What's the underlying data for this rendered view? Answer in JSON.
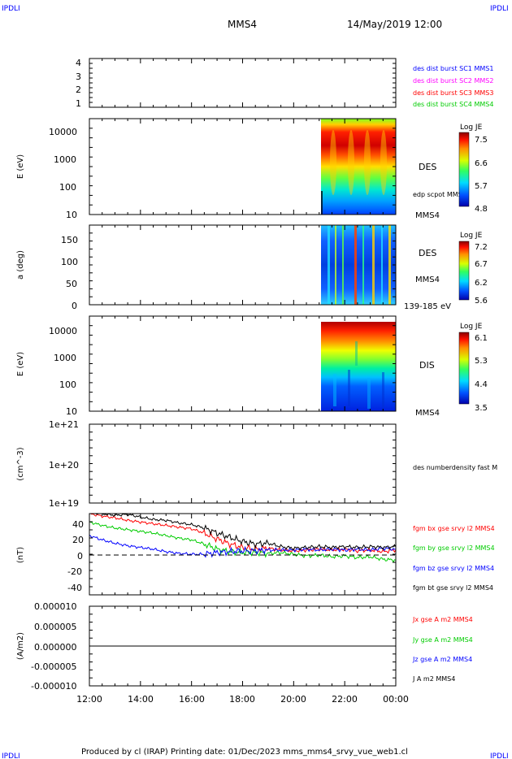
{
  "header": {
    "ipdli": "IPDLI",
    "spacecraft": "MMS4",
    "datetime": "14/May/2019 12:00"
  },
  "footer": {
    "text": "Produced by cl (IRAP)   Printing date: 01/Dec/2023   mms_mms4_srvy_vue_web1.cl"
  },
  "colors": {
    "blue": "#0000ff",
    "magenta": "#ff00ff",
    "red": "#ff0000",
    "green": "#00cc00",
    "black": "#000000"
  },
  "chart_data": [
    {
      "type": "line",
      "panel": "burst",
      "ylim": [
        0.7,
        4.3
      ],
      "yticks": [
        "4",
        "3",
        "2",
        "1"
      ],
      "legend": [
        "des dist burst SC1 MMS1",
        "des dist burst SC2 MMS2",
        "des dist burst SC3 MMS3",
        "des dist burst SC4 MMS4"
      ],
      "legend_colors": [
        "#0000ff",
        "#ff00ff",
        "#ff0000",
        "#00cc00"
      ]
    },
    {
      "type": "heatmap",
      "panel": "des-energy",
      "ylabel": "E (eV)",
      "yscale": "log",
      "yticks": [
        "10000",
        "1000",
        "100",
        "10"
      ],
      "side_label": "DES",
      "side_label2": "MMS4",
      "extra_label": "edp scpot MMS4",
      "colorbar": {
        "title": "Log JE",
        "ticks": [
          "7.5",
          "6.6",
          "5.7",
          "4.8"
        ]
      },
      "data_start": "21:00",
      "data_end": "00:00"
    },
    {
      "type": "heatmap",
      "panel": "des-pitch",
      "ylabel": "a (deg)",
      "yticks": [
        "150",
        "100",
        "50",
        "0"
      ],
      "ylim": [
        0,
        180
      ],
      "side_label": "DES",
      "side_label2": "MMS4",
      "side_label3": "139-185 eV",
      "colorbar": {
        "title": "Log JE",
        "ticks": [
          "7.2",
          "6.7",
          "6.2",
          "5.6"
        ]
      },
      "data_start": "21:00",
      "data_end": "00:00"
    },
    {
      "type": "heatmap",
      "panel": "dis-energy",
      "ylabel": "E (eV)",
      "yscale": "log",
      "yticks": [
        "10000",
        "1000",
        "100",
        "10"
      ],
      "side_label": "DIS",
      "side_label2": "MMS4",
      "colorbar": {
        "title": "Log JE",
        "ticks": [
          "6.1",
          "5.3",
          "4.4",
          "3.5"
        ]
      },
      "data_start": "21:00",
      "data_end": "00:00"
    },
    {
      "type": "line",
      "panel": "density",
      "ylabel": "(cm^-3)",
      "yscale": "log",
      "yticks": [
        "1e+21",
        "1e+20",
        "1e+19"
      ],
      "legend": [
        "des numberdensity fast M"
      ],
      "legend_colors": [
        "#000000"
      ]
    },
    {
      "type": "line",
      "panel": "bfield",
      "ylabel": "(nT)",
      "ylim": [
        -48,
        48
      ],
      "yticks": [
        "40",
        "20",
        "0",
        "-20",
        "-40"
      ],
      "x": [
        12,
        12.5,
        13,
        13.5,
        14,
        14.5,
        15,
        15.5,
        16,
        16.5,
        17,
        17.5,
        18,
        18.5,
        19,
        19.5,
        20,
        20.5,
        21,
        21.5,
        22,
        22.5,
        23,
        23.5,
        24
      ],
      "series": [
        {
          "name": "fgm bx gse srvy l2 MMS4",
          "color": "#ff0000",
          "values": [
            48,
            45,
            43,
            40,
            38,
            36,
            34,
            32,
            30,
            25,
            18,
            12,
            8,
            6,
            7,
            5,
            4,
            5,
            6,
            5,
            6,
            4,
            5,
            3,
            5
          ]
        },
        {
          "name": "fgm by gse srvy l2 MMS4",
          "color": "#00cc00",
          "values": [
            38,
            34,
            31,
            29,
            27,
            25,
            22,
            19,
            17,
            12,
            6,
            3,
            2,
            2,
            1,
            2,
            0,
            -2,
            -1,
            -3,
            -2,
            -4,
            -3,
            -6,
            -7
          ]
        },
        {
          "name": "fgm bz gse srvy l2 MMS4",
          "color": "#0000ff",
          "values": [
            22,
            17,
            13,
            10,
            8,
            6,
            3,
            1,
            0,
            0,
            2,
            3,
            4,
            4,
            5,
            5,
            5,
            6,
            5,
            6,
            5,
            6,
            5,
            7,
            6
          ]
        },
        {
          "name": "fgm bt gse srvy l2 MMS4",
          "color": "#000000",
          "values": [
            50,
            48,
            46,
            47,
            44,
            41,
            40,
            37,
            35,
            31,
            25,
            20,
            15,
            12,
            13,
            9,
            7,
            8,
            9,
            8,
            9,
            8,
            9,
            8,
            9
          ]
        }
      ]
    },
    {
      "type": "line",
      "panel": "current",
      "ylabel": "(A/m2)",
      "ylim": [
        -1e-05,
        1e-05
      ],
      "yticks": [
        "0.000010",
        "0.000005",
        "0.000000",
        "-0.000005",
        "-0.000010"
      ],
      "x": [
        12,
        14,
        16,
        18,
        20,
        22,
        24
      ],
      "series": [
        {
          "name": "Jx gse A m2 MMS4",
          "color": "#ff0000",
          "values": [
            0,
            0,
            0,
            0,
            0,
            0,
            0
          ]
        },
        {
          "name": "Jy gse A m2 MMS4",
          "color": "#00cc00",
          "values": [
            0,
            0,
            0,
            0,
            0,
            0,
            0
          ]
        },
        {
          "name": "Jz gse A m2 MMS4",
          "color": "#0000ff",
          "values": [
            0,
            0,
            0,
            0,
            0,
            0,
            0
          ]
        },
        {
          "name": "J A m2 MMS4",
          "color": "#000000",
          "values": [
            0,
            0,
            0,
            0,
            0,
            0,
            0
          ]
        }
      ],
      "xticks": [
        "12:00",
        "14:00",
        "16:00",
        "18:00",
        "20:00",
        "22:00",
        "00:00"
      ],
      "xlim": [
        12,
        24
      ]
    }
  ]
}
